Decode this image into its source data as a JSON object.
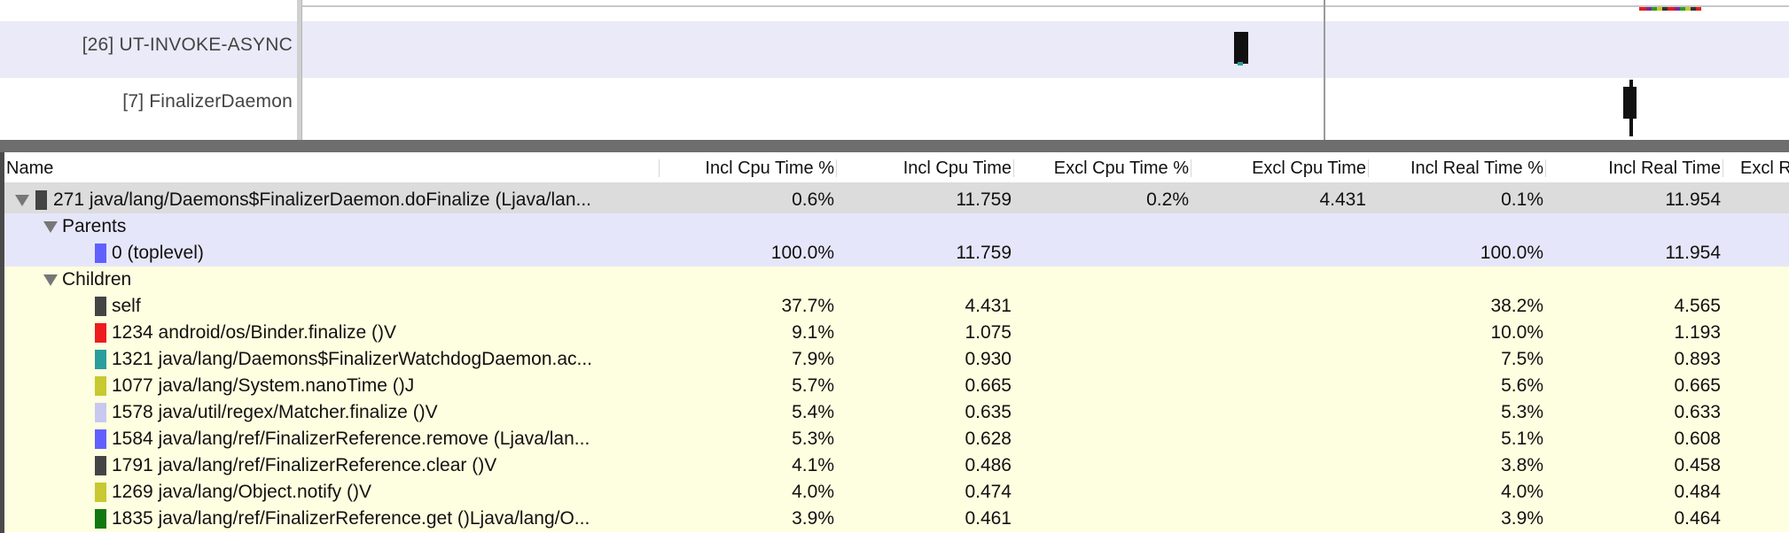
{
  "timeline": {
    "threads": [
      {
        "label": "[26] UT-INVOKE-ASYNC"
      },
      {
        "label": "[7] FinalizerDaemon"
      }
    ],
    "colors": {
      "row_alt": "#eaeaf9",
      "block": "#111111",
      "cursor": "#9a9a9a"
    }
  },
  "table": {
    "columns": [
      {
        "label": "Name"
      },
      {
        "label": "Incl Cpu Time %"
      },
      {
        "label": "Incl Cpu Time"
      },
      {
        "label": "Excl Cpu Time %"
      },
      {
        "label": "Excl Cpu Time"
      },
      {
        "label": "Incl Real Time %"
      },
      {
        "label": "Incl Real Time"
      },
      {
        "label": "Excl R"
      }
    ],
    "selected": {
      "name": "271 java/lang/Daemons$FinalizerDaemon.doFinalize (Ljava/lan...",
      "swatch": "#444444",
      "incl_cpu_pct": "0.6%",
      "incl_cpu": "11.759",
      "excl_cpu_pct": "0.2%",
      "excl_cpu": "4.431",
      "incl_real_pct": "0.1%",
      "incl_real": "11.954"
    },
    "parents_label": "Parents",
    "parents": [
      {
        "name": "0 (toplevel)",
        "swatch": "#6060ff",
        "incl_cpu_pct": "100.0%",
        "incl_cpu": "11.759",
        "incl_real_pct": "100.0%",
        "incl_real": "11.954"
      }
    ],
    "children_label": "Children",
    "children": [
      {
        "name": "self",
        "swatch": "#444444",
        "incl_cpu_pct": "37.7%",
        "incl_cpu": "4.431",
        "incl_real_pct": "38.2%",
        "incl_real": "4.565"
      },
      {
        "name": "1234 android/os/Binder.finalize ()V",
        "swatch": "#ee1c1c",
        "incl_cpu_pct": "9.1%",
        "incl_cpu": "1.075",
        "incl_real_pct": "10.0%",
        "incl_real": "1.193"
      },
      {
        "name": "1321 java/lang/Daemons$FinalizerWatchdogDaemon.ac...",
        "swatch": "#2a9d9d",
        "incl_cpu_pct": "7.9%",
        "incl_cpu": "0.930",
        "incl_real_pct": "7.5%",
        "incl_real": "0.893"
      },
      {
        "name": "1077 java/lang/System.nanoTime ()J",
        "swatch": "#c8c830",
        "incl_cpu_pct": "5.7%",
        "incl_cpu": "0.665",
        "incl_real_pct": "5.6%",
        "incl_real": "0.665"
      },
      {
        "name": "1578 java/util/regex/Matcher.finalize ()V",
        "swatch": "#c8c8f0",
        "incl_cpu_pct": "5.4%",
        "incl_cpu": "0.635",
        "incl_real_pct": "5.3%",
        "incl_real": "0.633"
      },
      {
        "name": "1584 java/lang/ref/FinalizerReference.remove (Ljava/lan...",
        "swatch": "#6060ff",
        "incl_cpu_pct": "5.3%",
        "incl_cpu": "0.628",
        "incl_real_pct": "5.1%",
        "incl_real": "0.608"
      },
      {
        "name": "1791 java/lang/ref/FinalizerReference.clear ()V",
        "swatch": "#444444",
        "incl_cpu_pct": "4.1%",
        "incl_cpu": "0.486",
        "incl_real_pct": "3.8%",
        "incl_real": "0.458"
      },
      {
        "name": "1269 java/lang/Object.notify ()V",
        "swatch": "#c8c830",
        "incl_cpu_pct": "4.0%",
        "incl_cpu": "0.474",
        "incl_real_pct": "4.0%",
        "incl_real": "0.484"
      },
      {
        "name": "1835 java/lang/ref/FinalizerReference.get ()Ljava/lang/O...",
        "swatch": "#117711",
        "incl_cpu_pct": "3.9%",
        "incl_cpu": "0.461",
        "incl_real_pct": "3.9%",
        "incl_real": "0.464"
      }
    ]
  }
}
